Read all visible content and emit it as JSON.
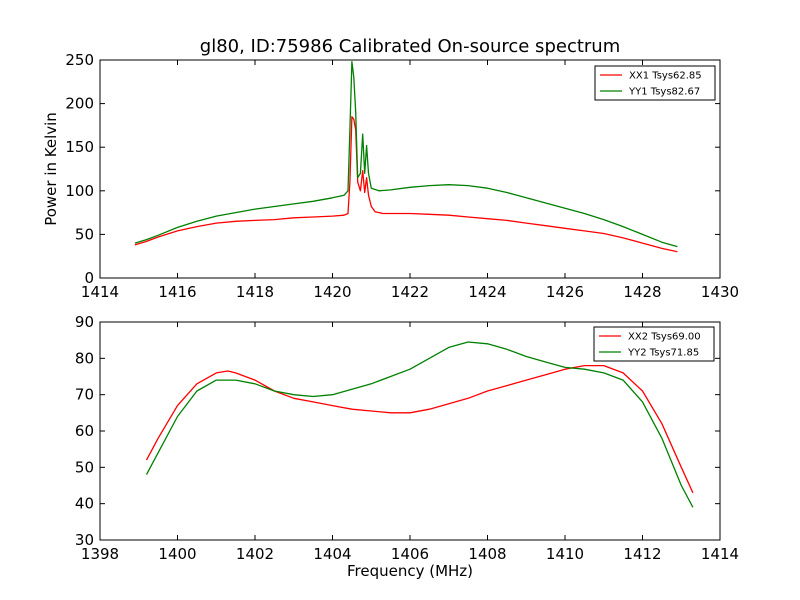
{
  "figure": {
    "title": "gl80, ID:75986 Calibrated On-source spectrum",
    "colors": {
      "xx": "#ff0000",
      "yy": "#008000",
      "axes": "#000000",
      "background": "#ffffff"
    }
  },
  "chart_data": [
    {
      "type": "line",
      "title": "gl80, ID:75986 Calibrated On-source spectrum",
      "xlabel": "",
      "ylabel": "Power in Kelvin",
      "xlim": [
        1414,
        1430
      ],
      "ylim": [
        0,
        250
      ],
      "xticks": [
        "1414",
        "1416",
        "1418",
        "1420",
        "1422",
        "1424",
        "1426",
        "1428",
        "1430"
      ],
      "yticks": [
        "0",
        "50",
        "100",
        "150",
        "200",
        "250"
      ],
      "grid": false,
      "legend_position": "top-right",
      "series": [
        {
          "name": "XX1 Tsys62.85",
          "color": "#ff0000",
          "points": [
            [
              1414.9,
              38
            ],
            [
              1415.2,
              42
            ],
            [
              1415.5,
              47
            ],
            [
              1416,
              54
            ],
            [
              1416.5,
              59
            ],
            [
              1417,
              63
            ],
            [
              1417.5,
              65
            ],
            [
              1418,
              66
            ],
            [
              1418.5,
              67
            ],
            [
              1419,
              69
            ],
            [
              1419.5,
              70
            ],
            [
              1420,
              71
            ],
            [
              1420.3,
              72
            ],
            [
              1420.4,
              74
            ],
            [
              1420.45,
              110
            ],
            [
              1420.5,
              185
            ],
            [
              1420.55,
              182
            ],
            [
              1420.6,
              170
            ],
            [
              1420.65,
              110
            ],
            [
              1420.72,
              100
            ],
            [
              1420.78,
              123
            ],
            [
              1420.83,
              98
            ],
            [
              1420.88,
              115
            ],
            [
              1420.93,
              95
            ],
            [
              1421,
              82
            ],
            [
              1421.1,
              76
            ],
            [
              1421.3,
              74
            ],
            [
              1421.5,
              74
            ],
            [
              1422,
              74
            ],
            [
              1422.5,
              73
            ],
            [
              1423,
              72
            ],
            [
              1423.5,
              70
            ],
            [
              1424,
              68
            ],
            [
              1424.5,
              66
            ],
            [
              1425,
              63
            ],
            [
              1425.5,
              60
            ],
            [
              1426,
              57
            ],
            [
              1426.5,
              54
            ],
            [
              1427,
              51
            ],
            [
              1427.5,
              46
            ],
            [
              1428,
              40
            ],
            [
              1428.5,
              34
            ],
            [
              1428.9,
              30
            ]
          ]
        },
        {
          "name": "YY1 Tsys82.67",
          "color": "#008000",
          "points": [
            [
              1414.9,
              40
            ],
            [
              1415.2,
              44
            ],
            [
              1415.5,
              49
            ],
            [
              1416,
              58
            ],
            [
              1416.5,
              65
            ],
            [
              1417,
              71
            ],
            [
              1417.5,
              75
            ],
            [
              1418,
              79
            ],
            [
              1418.5,
              82
            ],
            [
              1419,
              85
            ],
            [
              1419.5,
              88
            ],
            [
              1420,
              92
            ],
            [
              1420.3,
              95
            ],
            [
              1420.4,
              100
            ],
            [
              1420.45,
              170
            ],
            [
              1420.5,
              248
            ],
            [
              1420.55,
              230
            ],
            [
              1420.6,
              190
            ],
            [
              1420.65,
              115
            ],
            [
              1420.72,
              120
            ],
            [
              1420.78,
              165
            ],
            [
              1420.83,
              120
            ],
            [
              1420.88,
              152
            ],
            [
              1420.93,
              120
            ],
            [
              1421,
              103
            ],
            [
              1421.2,
              100
            ],
            [
              1421.5,
              101
            ],
            [
              1422,
              104
            ],
            [
              1422.5,
              106
            ],
            [
              1423,
              107
            ],
            [
              1423.5,
              106
            ],
            [
              1424,
              103
            ],
            [
              1424.5,
              98
            ],
            [
              1425,
              92
            ],
            [
              1425.5,
              86
            ],
            [
              1426,
              80
            ],
            [
              1426.5,
              74
            ],
            [
              1427,
              67
            ],
            [
              1427.5,
              59
            ],
            [
              1428,
              50
            ],
            [
              1428.5,
              41
            ],
            [
              1428.9,
              36
            ]
          ]
        }
      ]
    },
    {
      "type": "line",
      "title": "",
      "xlabel": "Frequency (MHz)",
      "ylabel": "",
      "xlim": [
        1398,
        1414
      ],
      "ylim": [
        30,
        90
      ],
      "xticks": [
        "1398",
        "1400",
        "1402",
        "1404",
        "1406",
        "1408",
        "1410",
        "1412",
        "1414"
      ],
      "yticks": [
        "30",
        "40",
        "50",
        "60",
        "70",
        "80",
        "90"
      ],
      "grid": false,
      "legend_position": "top-right",
      "series": [
        {
          "name": "XX2 Tsys69.00",
          "color": "#ff0000",
          "points": [
            [
              1399.2,
              52
            ],
            [
              1399.5,
              58
            ],
            [
              1400,
              67
            ],
            [
              1400.5,
              73
            ],
            [
              1401,
              76
            ],
            [
              1401.3,
              76.5
            ],
            [
              1401.5,
              76
            ],
            [
              1402,
              74
            ],
            [
              1402.5,
              71
            ],
            [
              1403,
              69
            ],
            [
              1403.5,
              68
            ],
            [
              1404,
              67
            ],
            [
              1404.5,
              66
            ],
            [
              1405,
              65.5
            ],
            [
              1405.5,
              65
            ],
            [
              1406,
              65
            ],
            [
              1406.5,
              66
            ],
            [
              1407,
              67.5
            ],
            [
              1407.5,
              69
            ],
            [
              1408,
              71
            ],
            [
              1408.5,
              72.5
            ],
            [
              1409,
              74
            ],
            [
              1409.5,
              75.5
            ],
            [
              1410,
              77
            ],
            [
              1410.5,
              78
            ],
            [
              1411,
              78
            ],
            [
              1411.5,
              76
            ],
            [
              1412,
              71
            ],
            [
              1412.5,
              62
            ],
            [
              1413,
              50
            ],
            [
              1413.3,
              43
            ]
          ]
        },
        {
          "name": "YY2 Tsys71.85",
          "color": "#008000",
          "points": [
            [
              1399.2,
              48
            ],
            [
              1399.5,
              54
            ],
            [
              1400,
              64
            ],
            [
              1400.5,
              71
            ],
            [
              1401,
              74
            ],
            [
              1401.5,
              74
            ],
            [
              1402,
              73
            ],
            [
              1402.5,
              71
            ],
            [
              1403,
              70
            ],
            [
              1403.5,
              69.5
            ],
            [
              1404,
              70
            ],
            [
              1404.5,
              71.5
            ],
            [
              1405,
              73
            ],
            [
              1405.5,
              75
            ],
            [
              1406,
              77
            ],
            [
              1406.5,
              80
            ],
            [
              1407,
              83
            ],
            [
              1407.5,
              84.5
            ],
            [
              1408,
              84
            ],
            [
              1408.5,
              82.5
            ],
            [
              1409,
              80.5
            ],
            [
              1409.5,
              79
            ],
            [
              1410,
              77.5
            ],
            [
              1410.5,
              77
            ],
            [
              1411,
              76
            ],
            [
              1411.5,
              74
            ],
            [
              1412,
              68
            ],
            [
              1412.5,
              58
            ],
            [
              1413,
              45
            ],
            [
              1413.3,
              39
            ]
          ]
        }
      ]
    }
  ]
}
